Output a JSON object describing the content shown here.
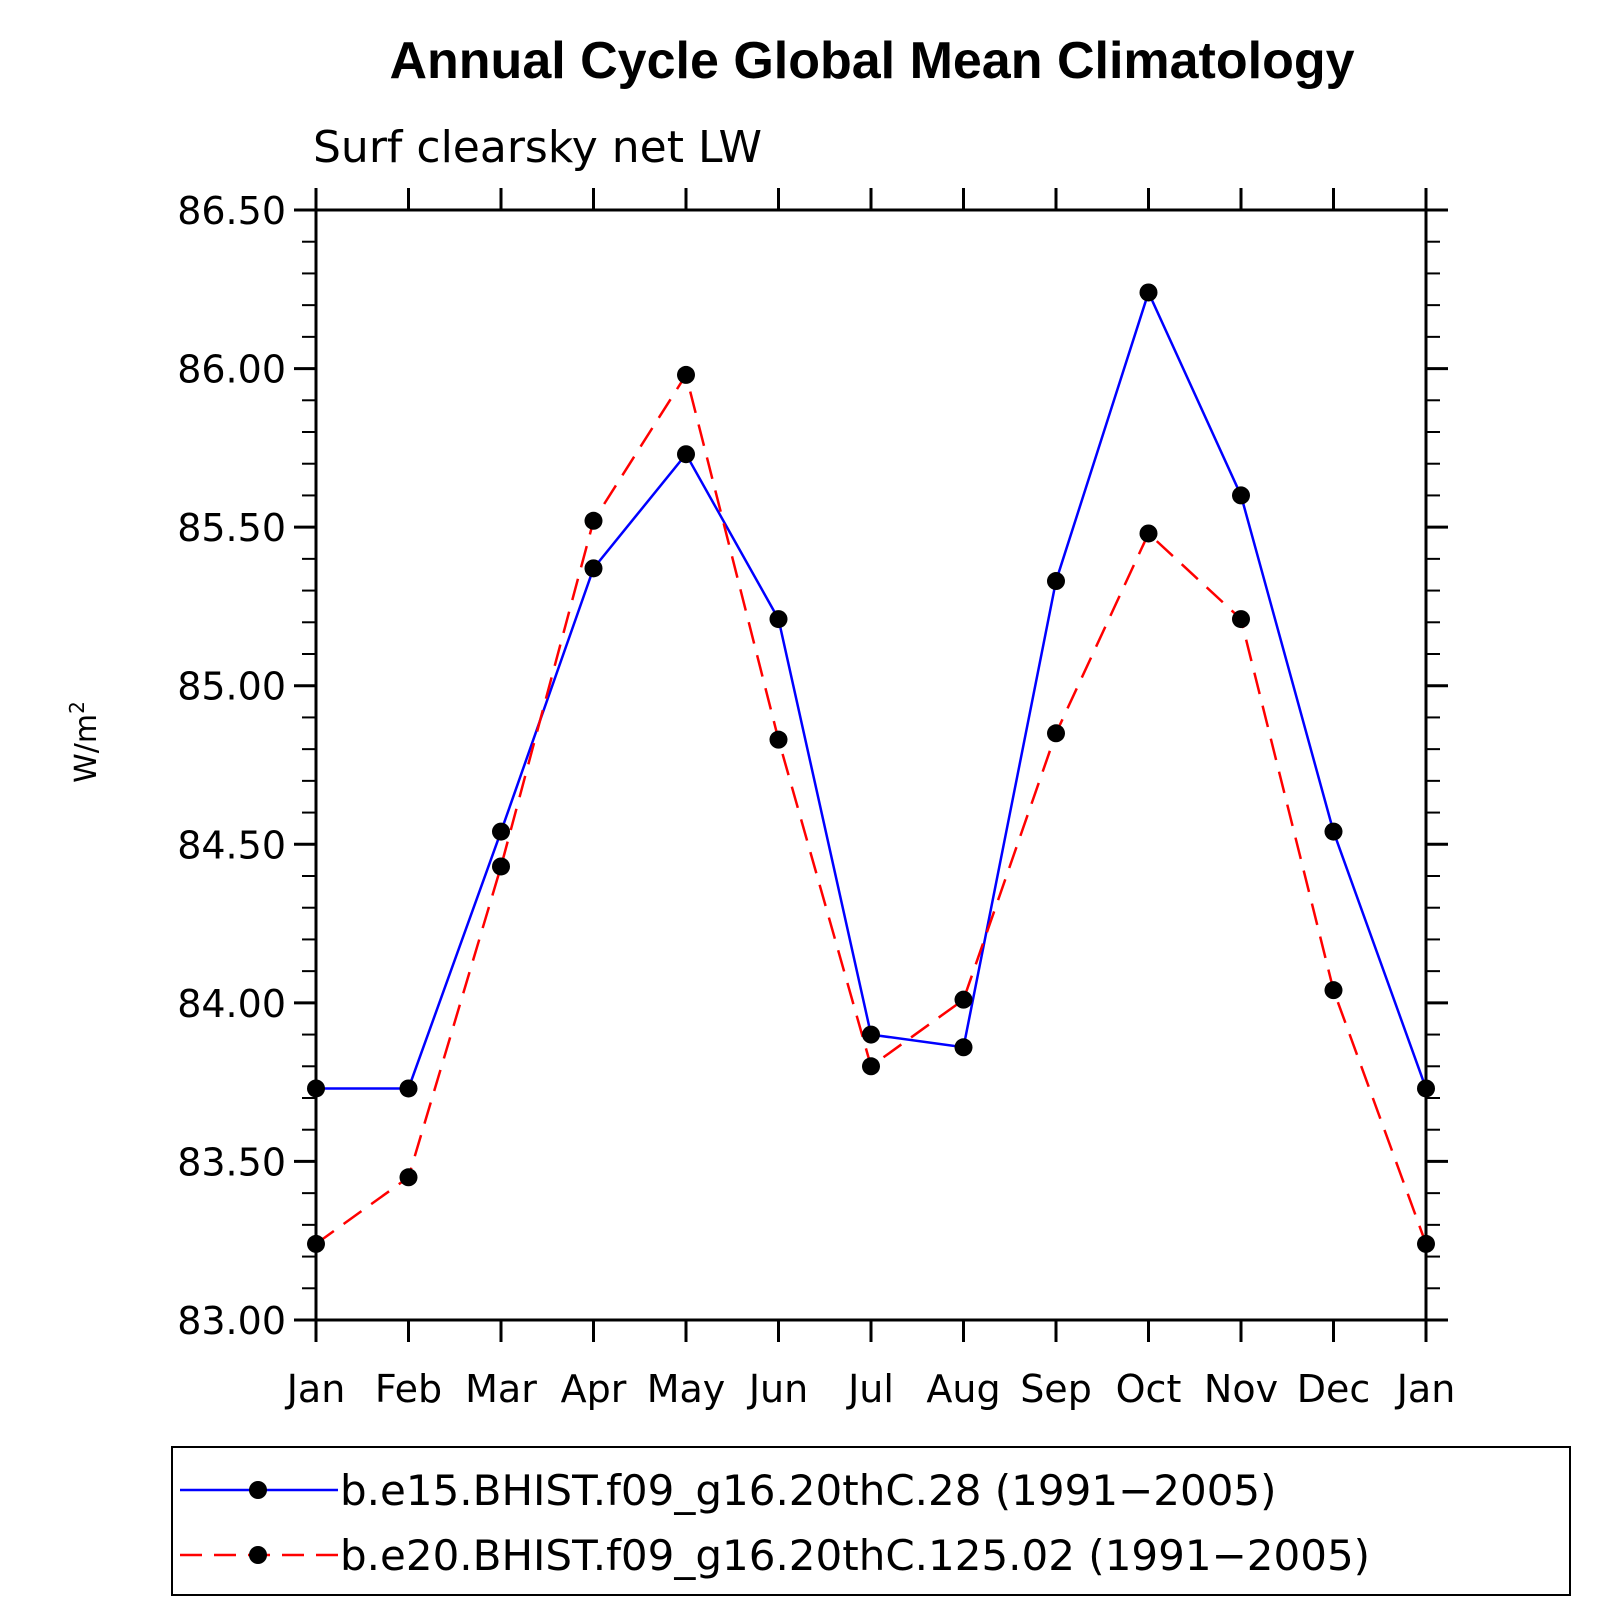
{
  "chart_data": {
    "type": "line",
    "title": "Annual Cycle Global Mean Climatology",
    "subtitle": "Surf clearsky net LW",
    "ylabel": "W/m",
    "ylabel_sup": "2",
    "xlabel": "",
    "categories": [
      "Jan",
      "Feb",
      "Mar",
      "Apr",
      "May",
      "Jun",
      "Jul",
      "Aug",
      "Sep",
      "Oct",
      "Nov",
      "Dec",
      "Jan"
    ],
    "ylim": [
      83.0,
      86.5
    ],
    "yticks": [
      "83.00",
      "83.50",
      "84.00",
      "84.50",
      "85.00",
      "85.50",
      "86.00",
      "86.50"
    ],
    "legend_position": "bottom",
    "series": [
      {
        "name": "b.e15.BHIST.f09_g16.20thC.28 (1991−2005)",
        "color": "#0000ff",
        "style": "solid",
        "values": [
          83.73,
          83.73,
          84.54,
          85.37,
          85.73,
          85.21,
          83.9,
          83.86,
          85.33,
          86.24,
          85.6,
          84.54,
          83.73
        ]
      },
      {
        "name": "b.e20.BHIST.f09_g16.20thC.125.02 (1991−2005)",
        "color": "#ff0000",
        "style": "dashed",
        "values": [
          83.24,
          83.45,
          84.43,
          85.52,
          85.98,
          84.83,
          83.8,
          84.01,
          84.85,
          85.48,
          85.21,
          84.04,
          83.24
        ]
      }
    ]
  }
}
